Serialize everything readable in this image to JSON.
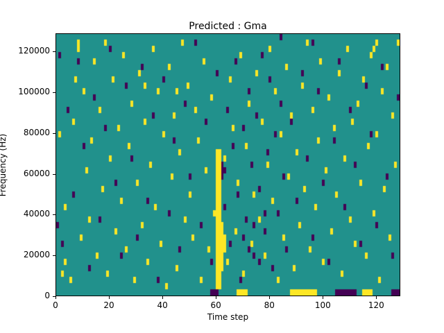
{
  "chart_data": {
    "type": "heatmap",
    "title": "Predicted : Gma",
    "xlabel": "Time step",
    "ylabel": "Frequency (Hz)",
    "xlim": [
      0,
      129
    ],
    "ylim": [
      0,
      129000
    ],
    "x_ticks": [
      0,
      20,
      40,
      60,
      80,
      100,
      120
    ],
    "y_ticks": [
      0,
      20000,
      40000,
      60000,
      80000,
      100000,
      120000
    ],
    "grid": {
      "cols": 129,
      "rows": 43,
      "hz_per_row": 3000
    },
    "colors": {
      "mid": "#21918c",
      "max": "#fde725",
      "min": "#440154",
      "axis": "#000000",
      "background": "#ffffff"
    },
    "legend": "none",
    "cells": {
      "yellow": [
        [
          1,
          26
        ],
        [
          2,
          3
        ],
        [
          3,
          5
        ],
        [
          3,
          14
        ],
        [
          5,
          2
        ],
        [
          6,
          28
        ],
        [
          7,
          35
        ],
        [
          8,
          40
        ],
        [
          9,
          9
        ],
        [
          10,
          33
        ],
        [
          11,
          20
        ],
        [
          12,
          12
        ],
        [
          13,
          25
        ],
        [
          14,
          38
        ],
        [
          15,
          6
        ],
        [
          16,
          30
        ],
        [
          17,
          17
        ],
        [
          18,
          41
        ],
        [
          19,
          3
        ],
        [
          20,
          22
        ],
        [
          21,
          35
        ],
        [
          22,
          10
        ],
        [
          23,
          27
        ],
        [
          24,
          15
        ],
        [
          25,
          39
        ],
        [
          26,
          7
        ],
        [
          27,
          24
        ],
        [
          28,
          31
        ],
        [
          29,
          2
        ],
        [
          30,
          18
        ],
        [
          31,
          36
        ],
        [
          32,
          11
        ],
        [
          33,
          28
        ],
        [
          34,
          5
        ],
        [
          35,
          21
        ],
        [
          36,
          40
        ],
        [
          37,
          14
        ],
        [
          38,
          33
        ],
        [
          39,
          8
        ],
        [
          40,
          26
        ],
        [
          41,
          1
        ],
        [
          42,
          37
        ],
        [
          43,
          19
        ],
        [
          44,
          29
        ],
        [
          45,
          4
        ],
        [
          46,
          23
        ],
        [
          47,
          41
        ],
        [
          48,
          12
        ],
        [
          49,
          34
        ],
        [
          50,
          16
        ],
        [
          51,
          9
        ],
        [
          52,
          30
        ],
        [
          53,
          25
        ],
        [
          54,
          2
        ],
        [
          55,
          38
        ],
        [
          56,
          20
        ],
        [
          57,
          7
        ],
        [
          58,
          32
        ],
        [
          59,
          13
        ],
        [
          63,
          22
        ],
        [
          64,
          5
        ],
        [
          65,
          35
        ],
        [
          66,
          27
        ],
        [
          67,
          10
        ],
        [
          68,
          18
        ],
        [
          69,
          39
        ],
        [
          70,
          3
        ],
        [
          71,
          24
        ],
        [
          72,
          31
        ],
        [
          73,
          8
        ],
        [
          74,
          16
        ],
        [
          75,
          36
        ],
        [
          76,
          12
        ],
        [
          77,
          28
        ],
        [
          78,
          6
        ],
        [
          79,
          21
        ],
        [
          80,
          40
        ],
        [
          81,
          15
        ],
        [
          82,
          33
        ],
        [
          83,
          2
        ],
        [
          84,
          26
        ],
        [
          85,
          9
        ],
        [
          86,
          37
        ],
        [
          87,
          19
        ],
        [
          88,
          29
        ],
        [
          89,
          4
        ],
        [
          90,
          23
        ],
        [
          91,
          11
        ],
        [
          92,
          34
        ],
        [
          93,
          17
        ],
        [
          94,
          41
        ],
        [
          95,
          7
        ],
        [
          96,
          30
        ],
        [
          97,
          14
        ],
        [
          98,
          25
        ],
        [
          99,
          38
        ],
        [
          100,
          5
        ],
        [
          101,
          20
        ],
        [
          102,
          32
        ],
        [
          103,
          10
        ],
        [
          104,
          27
        ],
        [
          105,
          16
        ],
        [
          106,
          36
        ],
        [
          107,
          3
        ],
        [
          108,
          22
        ],
        [
          109,
          40
        ],
        [
          110,
          12
        ],
        [
          111,
          28
        ],
        [
          112,
          8
        ],
        [
          113,
          31
        ],
        [
          114,
          18
        ],
        [
          115,
          35
        ],
        [
          116,
          6
        ],
        [
          117,
          24
        ],
        [
          118,
          39
        ],
        [
          119,
          13
        ],
        [
          120,
          26
        ],
        [
          121,
          2
        ],
        [
          122,
          33
        ],
        [
          123,
          17
        ],
        [
          124,
          37
        ],
        [
          125,
          9
        ],
        [
          126,
          29
        ],
        [
          127,
          21
        ],
        [
          128,
          41
        ],
        [
          119,
          40
        ],
        [
          120,
          41
        ],
        [
          8,
          41
        ],
        [
          33,
          34
        ],
        [
          45,
          33
        ]
      ],
      "purple": [
        [
          0,
          11
        ],
        [
          1,
          39
        ],
        [
          2,
          8
        ],
        [
          4,
          30
        ],
        [
          6,
          16
        ],
        [
          8,
          38
        ],
        [
          10,
          24
        ],
        [
          12,
          4
        ],
        [
          14,
          32
        ],
        [
          16,
          12
        ],
        [
          18,
          27
        ],
        [
          20,
          40
        ],
        [
          22,
          18
        ],
        [
          24,
          6
        ],
        [
          26,
          34
        ],
        [
          28,
          22
        ],
        [
          30,
          9
        ],
        [
          32,
          37
        ],
        [
          34,
          15
        ],
        [
          36,
          29
        ],
        [
          38,
          2
        ],
        [
          40,
          35
        ],
        [
          42,
          13
        ],
        [
          44,
          25
        ],
        [
          46,
          7
        ],
        [
          48,
          31
        ],
        [
          50,
          19
        ],
        [
          52,
          41
        ],
        [
          54,
          11
        ],
        [
          56,
          28
        ],
        [
          58,
          5
        ],
        [
          60,
          36
        ],
        [
          62,
          20
        ],
        [
          63,
          14
        ],
        [
          64,
          30
        ],
        [
          65,
          8
        ],
        [
          66,
          24
        ],
        [
          67,
          38
        ],
        [
          68,
          16
        ],
        [
          69,
          2
        ],
        [
          70,
          27
        ],
        [
          71,
          12
        ],
        [
          72,
          33
        ],
        [
          73,
          21
        ],
        [
          74,
          6
        ],
        [
          75,
          29
        ],
        [
          76,
          17
        ],
        [
          77,
          39
        ],
        [
          78,
          10
        ],
        [
          79,
          23
        ],
        [
          80,
          35
        ],
        [
          81,
          4
        ],
        [
          82,
          26
        ],
        [
          83,
          13
        ],
        [
          84,
          31
        ],
        [
          85,
          19
        ],
        [
          86,
          7
        ],
        [
          88,
          28
        ],
        [
          90,
          15
        ],
        [
          92,
          36
        ],
        [
          94,
          22
        ],
        [
          96,
          9
        ],
        [
          98,
          33
        ],
        [
          100,
          18
        ],
        [
          102,
          5
        ],
        [
          104,
          25
        ],
        [
          106,
          38
        ],
        [
          108,
          14
        ],
        [
          110,
          30
        ],
        [
          112,
          21
        ],
        [
          114,
          8
        ],
        [
          116,
          34
        ],
        [
          118,
          26
        ],
        [
          120,
          11
        ],
        [
          122,
          37
        ],
        [
          124,
          19
        ],
        [
          126,
          6
        ],
        [
          128,
          32
        ],
        [
          62,
          19
        ],
        [
          63,
          20
        ],
        [
          62,
          21
        ],
        [
          84,
          42
        ],
        [
          96,
          41
        ],
        [
          70,
          9
        ],
        [
          72,
          7
        ],
        [
          74,
          11
        ],
        [
          76,
          5
        ],
        [
          78,
          13
        ]
      ]
    },
    "band": {
      "cols": [
        60,
        61
      ],
      "row_min": 1,
      "row_max": 23,
      "extra": [
        [
          62,
          4
        ],
        [
          62,
          5
        ],
        [
          62,
          6
        ],
        [
          62,
          7
        ],
        [
          62,
          8
        ],
        [
          62,
          9
        ],
        [
          62,
          10
        ],
        [
          62,
          11
        ],
        [
          63,
          7
        ],
        [
          63,
          8
        ],
        [
          63,
          9
        ]
      ]
    },
    "bottom_runs": {
      "yellow": [
        [
          68,
          71
        ],
        [
          88,
          97
        ],
        [
          115,
          118
        ]
      ],
      "purple": [
        [
          58,
          60
        ],
        [
          105,
          112
        ],
        [
          126,
          128
        ]
      ]
    }
  }
}
